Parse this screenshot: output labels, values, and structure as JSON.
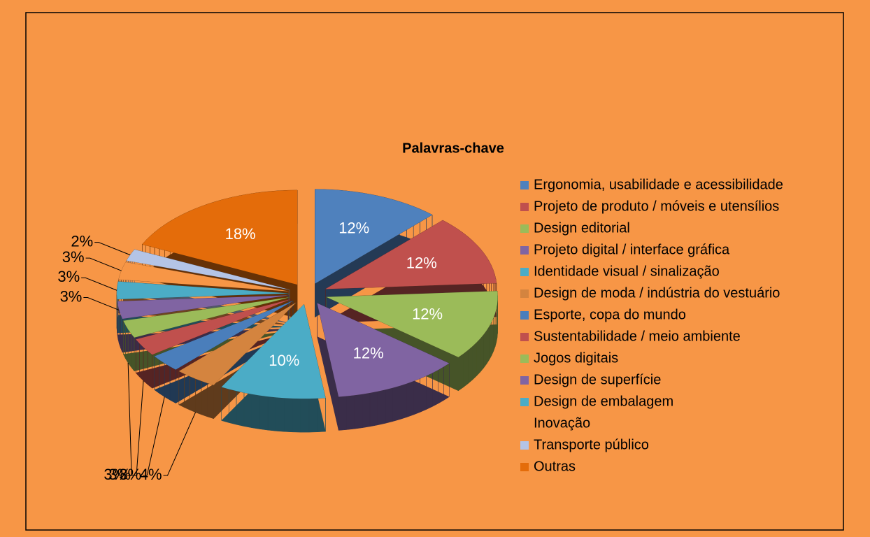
{
  "chart_data": {
    "type": "pie",
    "title": "Palavras-chave",
    "categories": [
      "Ergonomia, usabilidade e acessibilidade",
      "Projeto de produto / móveis e utensílios",
      "Design editorial",
      "Projeto digital / interface gráfica",
      "Identidade visual / sinalização",
      "Design de moda / indústria do vestuário",
      "Esporte, copa do mundo",
      "Sustentabilidade / meio ambiente",
      "Jogos digitais",
      "Design de superfície",
      "Design de embalagem",
      "Inovação",
      "Transporte público",
      "Outras"
    ],
    "values": [
      12,
      12,
      12,
      12,
      10,
      4,
      3,
      3,
      3,
      3,
      3,
      3,
      2,
      18
    ],
    "value_labels": [
      "12%",
      "12%",
      "12%",
      "12%",
      "10%",
      "4%",
      "3%",
      "3%",
      "3%",
      "3%",
      "3%",
      "3%",
      "2%",
      "18%"
    ],
    "colors": [
      "#4f81bd",
      "#c0504d",
      "#9bbb59",
      "#8064a2",
      "#4bacc6",
      "#d4843f",
      "#4a7ebb",
      "#c0504d",
      "#9bbb59",
      "#8064a2",
      "#4bacc6",
      "#f79646",
      "#b4c4e6",
      "#e46c0a"
    ],
    "legend": "right"
  }
}
